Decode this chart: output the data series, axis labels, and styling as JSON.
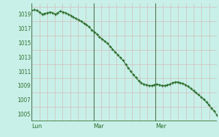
{
  "bg_color": "#c8f0e8",
  "line_color": "#2d6e2d",
  "marker_color": "#2d6e2d",
  "grid_color": "#d4b8b8",
  "vline_day_color": "#4a6e4a",
  "axis_color": "#2d6e2d",
  "tick_label_color": "#2d6e2d",
  "ylim": [
    1004.0,
    1020.5
  ],
  "yticks": [
    1005,
    1007,
    1009,
    1011,
    1013,
    1015,
    1017,
    1019
  ],
  "n_hours": 72,
  "day_positions": [
    0,
    24,
    48
  ],
  "day_labels": [
    "Lun",
    "Mar",
    "Mer"
  ],
  "pressure_values": [
    1019.5,
    1019.6,
    1019.5,
    1019.3,
    1019.0,
    1019.1,
    1019.2,
    1019.3,
    1019.2,
    1019.0,
    1019.2,
    1019.4,
    1019.3,
    1019.2,
    1019.0,
    1018.8,
    1018.6,
    1018.4,
    1018.2,
    1018.0,
    1017.7,
    1017.5,
    1017.2,
    1016.8,
    1016.5,
    1016.2,
    1015.8,
    1015.5,
    1015.2,
    1014.9,
    1014.5,
    1014.1,
    1013.7,
    1013.3,
    1012.9,
    1012.5,
    1012.0,
    1011.5,
    1011.0,
    1010.5,
    1010.1,
    1009.7,
    1009.4,
    1009.2,
    1009.1,
    1009.0,
    1009.0,
    1009.1,
    1009.2,
    1009.1,
    1009.0,
    1009.0,
    1009.1,
    1009.2,
    1009.4,
    1009.5,
    1009.5,
    1009.4,
    1009.3,
    1009.1,
    1008.9,
    1008.6,
    1008.3,
    1008.0,
    1007.7,
    1007.4,
    1007.1,
    1006.7,
    1006.3,
    1005.8,
    1005.4,
    1004.9
  ]
}
